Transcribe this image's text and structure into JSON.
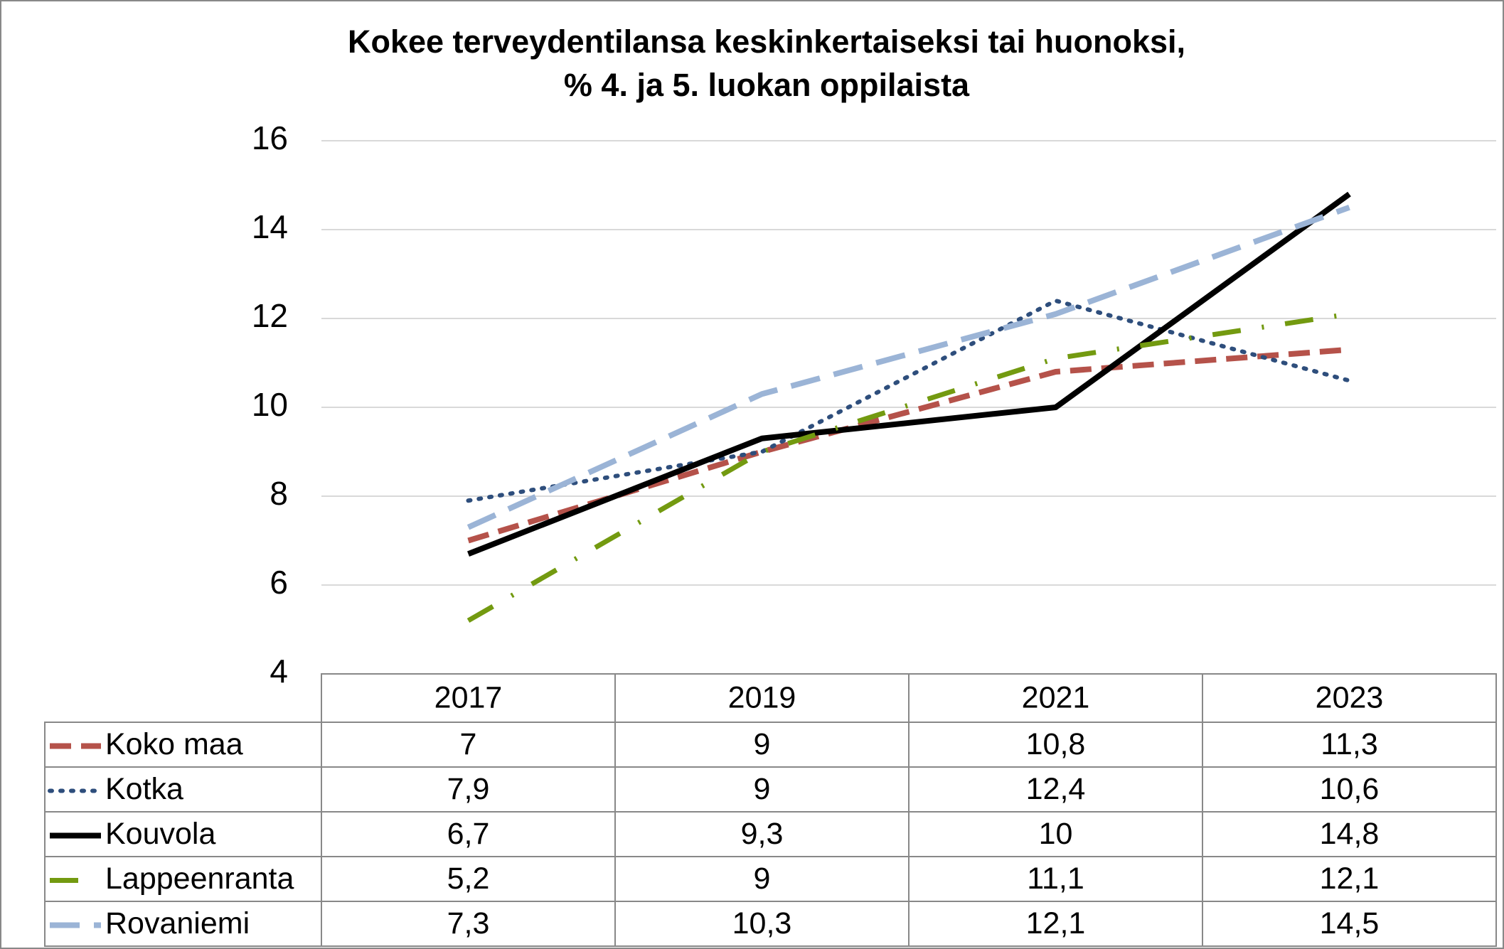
{
  "chart_data": {
    "type": "line",
    "title": [
      "Kokee terveydentilansa keskinkertaiseksi tai huonoksi,",
      "% 4. ja 5. luokan oppilaista"
    ],
    "categories": [
      "2017",
      "2019",
      "2021",
      "2023"
    ],
    "series": [
      {
        "name": "Koko maa",
        "color": "#b5524a",
        "line_style": "dash",
        "values": [
          7,
          9,
          10.8,
          11.3
        ],
        "value_labels": [
          "7",
          "9",
          "10,8",
          "11,3"
        ]
      },
      {
        "name": "Kotka",
        "color": "#2e4e7c",
        "line_style": "dot",
        "values": [
          7.9,
          9,
          12.4,
          10.6
        ],
        "value_labels": [
          "7,9",
          "9",
          "12,4",
          "10,6"
        ]
      },
      {
        "name": "Kouvola",
        "color": "#000000",
        "line_style": "solid",
        "values": [
          6.7,
          9.3,
          10,
          14.8
        ],
        "value_labels": [
          "6,7",
          "9,3",
          "10",
          "14,8"
        ]
      },
      {
        "name": "Lappeenranta",
        "color": "#739a10",
        "line_style": "dashdot",
        "values": [
          5.2,
          9,
          11.1,
          12.1
        ],
        "value_labels": [
          "5,2",
          "9",
          "11,1",
          "12,1"
        ]
      },
      {
        "name": "Rovaniemi",
        "color": "#9bb4d6",
        "line_style": "longdash",
        "values": [
          7.3,
          10.3,
          12.1,
          14.5
        ],
        "value_labels": [
          "7,3",
          "10,3",
          "12,1",
          "14,5"
        ]
      }
    ],
    "ylim": [
      4,
      16
    ],
    "yticks": [
      4,
      6,
      8,
      10,
      12,
      14,
      16
    ],
    "grid": true
  }
}
